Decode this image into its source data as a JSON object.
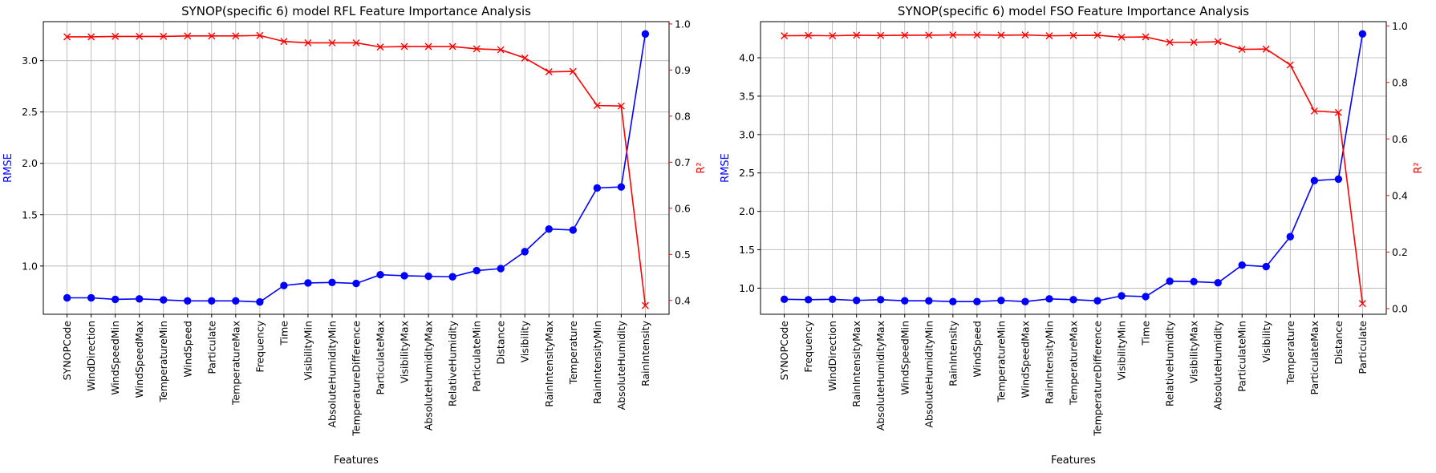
{
  "figure": {
    "background": "#ffffff"
  },
  "colors": {
    "rmse": "#0000ff",
    "r2": "#ff0000",
    "grid": "#b0b0b0",
    "axis": "#000000"
  },
  "chart_data": [
    {
      "type": "line",
      "title": "SYNOP(specific 6) model RFL Feature Importance Analysis",
      "xlabel": "Features",
      "ylabel": "RMSE",
      "y2label": "R²",
      "ylim": [
        0.53,
        3.38
      ],
      "y2lim": [
        0.37,
        1.005
      ],
      "yticks": [
        "1.0",
        "1.5",
        "2.0",
        "2.5",
        "3.0"
      ],
      "y2ticks": [
        "0.4",
        "0.5",
        "0.6",
        "0.7",
        "0.8",
        "0.9",
        "1.0"
      ],
      "grid": true,
      "categories": [
        "SYNOPCode",
        "WindDirection",
        "WindSpeedMin",
        "WindSpeedMax",
        "TemperatureMin",
        "WindSpeed",
        "Particulate",
        "TemperatureMax",
        "Frequency",
        "Time",
        "VisibilityMin",
        "AbsoluteHumidityMin",
        "TemperatureDifference",
        "ParticulateMax",
        "VisibilityMax",
        "AbsoluteHumidityMax",
        "RelativeHumidity",
        "ParticulateMin",
        "Distance",
        "Visibility",
        "RainIntensityMax",
        "Temperature",
        "RainIntensityMin",
        "AbsoluteHumidity",
        "RainIntensity"
      ],
      "series": [
        {
          "name": "RMSE",
          "axis": "left",
          "marker": "circle",
          "color": "#0000ff",
          "values": [
            0.69,
            0.69,
            0.675,
            0.68,
            0.67,
            0.66,
            0.66,
            0.66,
            0.65,
            0.81,
            0.835,
            0.84,
            0.83,
            0.915,
            0.905,
            0.9,
            0.895,
            0.955,
            0.975,
            1.14,
            1.36,
            1.35,
            1.76,
            1.77,
            3.26
          ]
        },
        {
          "name": "R²",
          "axis": "right",
          "marker": "x",
          "color": "#ff0000",
          "values": [
            0.972,
            0.972,
            0.973,
            0.973,
            0.973,
            0.974,
            0.974,
            0.974,
            0.975,
            0.962,
            0.959,
            0.959,
            0.959,
            0.95,
            0.951,
            0.951,
            0.951,
            0.946,
            0.944,
            0.926,
            0.896,
            0.897,
            0.823,
            0.822,
            0.389
          ]
        }
      ]
    },
    {
      "type": "line",
      "title": "SYNOP(specific 6) model FSO Feature Importance Analysis",
      "xlabel": "Features",
      "ylabel": "RMSE",
      "y2label": "R²",
      "ylim": [
        0.66,
        4.47
      ],
      "y2lim": [
        -0.02,
        1.015
      ],
      "yticks": [
        "1.0",
        "1.5",
        "2.0",
        "2.5",
        "3.0",
        "3.5",
        "4.0"
      ],
      "y2ticks": [
        "0.0",
        "0.2",
        "0.4",
        "0.6",
        "0.8",
        "1.0"
      ],
      "grid": true,
      "categories": [
        "SYNOPCode",
        "Frequency",
        "WindDirection",
        "RainIntensityMax",
        "AbsoluteHumidityMax",
        "WindSpeedMin",
        "AbsoluteHumidityMin",
        "RainIntensity",
        "WindSpeed",
        "TemperatureMin",
        "WindSpeedMax",
        "RainIntensityMin",
        "TemperatureMax",
        "TemperatureDifference",
        "VisibilityMin",
        "Time",
        "RelativeHumidity",
        "VisibilityMax",
        "AbsoluteHumidity",
        "ParticulateMin",
        "Visibility",
        "Temperature",
        "ParticulateMax",
        "Distance",
        "Particulate"
      ],
      "series": [
        {
          "name": "RMSE",
          "axis": "left",
          "marker": "circle",
          "color": "#0000ff",
          "values": [
            0.855,
            0.85,
            0.855,
            0.84,
            0.85,
            0.835,
            0.835,
            0.825,
            0.825,
            0.84,
            0.825,
            0.86,
            0.85,
            0.835,
            0.9,
            0.89,
            1.09,
            1.085,
            1.07,
            1.3,
            1.28,
            1.67,
            2.4,
            2.42,
            4.31
          ]
        },
        {
          "name": "R²",
          "axis": "right",
          "marker": "x",
          "color": "#ff0000",
          "values": [
            0.965,
            0.966,
            0.965,
            0.967,
            0.966,
            0.967,
            0.967,
            0.968,
            0.968,
            0.967,
            0.968,
            0.965,
            0.966,
            0.967,
            0.96,
            0.961,
            0.942,
            0.942,
            0.944,
            0.917,
            0.918,
            0.862,
            0.699,
            0.694,
            0.018
          ]
        }
      ]
    }
  ]
}
